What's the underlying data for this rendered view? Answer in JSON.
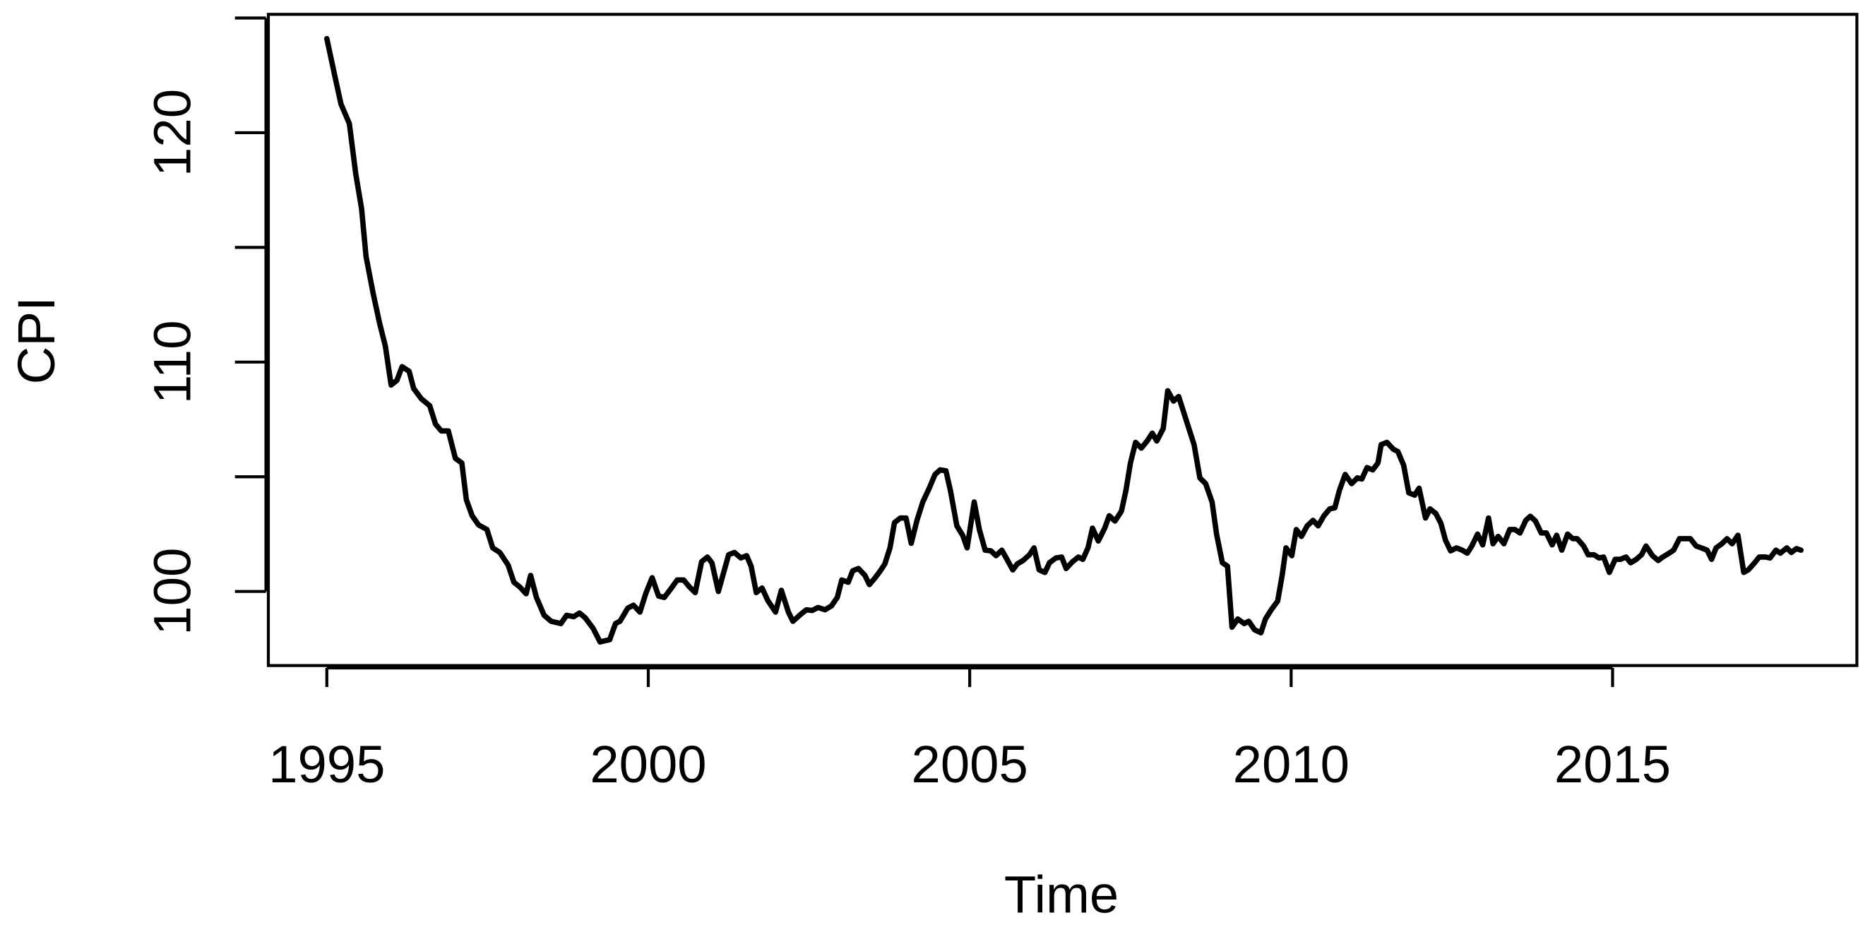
{
  "chart_data": {
    "type": "line",
    "x_label": "Time",
    "y_label": "CPI",
    "xlim": [
      1994.09,
      2018.8
    ],
    "ylim": [
      96.77,
      125.16
    ],
    "xticks": [
      1995,
      2000,
      2005,
      2010,
      2015
    ],
    "yticks": [
      100,
      110,
      120
    ],
    "y_minor_ticks": [
      105,
      115,
      125
    ],
    "color": "#000000",
    "x": [
      1995.0,
      1995.13,
      1995.22,
      1995.35,
      1995.45,
      1995.54,
      1995.61,
      1995.72,
      1995.82,
      1995.91,
      1996.0,
      1996.09,
      1996.17,
      1996.28,
      1996.35,
      1996.47,
      1996.6,
      1996.69,
      1996.78,
      1996.89,
      1997.0,
      1997.1,
      1997.17,
      1997.26,
      1997.36,
      1997.49,
      1997.58,
      1997.69,
      1997.82,
      1997.91,
      1998.0,
      1998.1,
      1998.17,
      1998.26,
      1998.38,
      1998.49,
      1998.64,
      1998.73,
      1998.84,
      1998.93,
      1999.02,
      1999.14,
      1999.25,
      1999.4,
      1999.49,
      1999.56,
      1999.68,
      1999.77,
      1999.87,
      1999.96,
      2000.06,
      2000.16,
      2000.25,
      2000.36,
      2000.45,
      2000.55,
      2000.64,
      2000.73,
      2000.83,
      2000.92,
      2000.99,
      2001.09,
      2001.18,
      2001.25,
      2001.34,
      2001.44,
      2001.53,
      2001.6,
      2001.68,
      2001.77,
      2001.86,
      2001.98,
      2002.07,
      2002.18,
      2002.25,
      2002.37,
      2002.46,
      2002.55,
      2002.64,
      2002.75,
      2002.85,
      2002.94,
      2003.01,
      2003.11,
      2003.18,
      2003.27,
      2003.37,
      2003.44,
      2003.53,
      2003.61,
      2003.68,
      2003.76,
      2003.83,
      2003.92,
      2004.01,
      2004.09,
      2004.18,
      2004.27,
      2004.37,
      2004.46,
      2004.54,
      2004.63,
      2004.7,
      2004.8,
      2004.89,
      2004.96,
      2005.07,
      2005.15,
      2005.24,
      2005.33,
      2005.41,
      2005.5,
      2005.58,
      2005.67,
      2005.74,
      2005.83,
      2005.93,
      2006.0,
      2006.08,
      2006.17,
      2006.24,
      2006.34,
      2006.43,
      2006.5,
      2006.6,
      2006.69,
      2006.76,
      2006.84,
      2006.91,
      2007.0,
      2007.1,
      2007.17,
      2007.26,
      2007.36,
      2007.43,
      2007.5,
      2007.58,
      2007.67,
      2007.76,
      2007.84,
      2007.91,
      2008.01,
      2008.08,
      2008.17,
      2008.25,
      2008.33,
      2008.41,
      2008.49,
      2008.58,
      2008.67,
      2008.77,
      2008.84,
      2008.93,
      2009.01,
      2009.08,
      2009.17,
      2009.27,
      2009.34,
      2009.43,
      2009.53,
      2009.6,
      2009.69,
      2009.79,
      2009.86,
      2009.92,
      2010.01,
      2010.08,
      2010.16,
      2010.25,
      2010.34,
      2010.42,
      2010.51,
      2010.6,
      2010.68,
      2010.75,
      2010.84,
      2010.94,
      2011.03,
      2011.1,
      2011.18,
      2011.27,
      2011.35,
      2011.4,
      2011.49,
      2011.59,
      2011.66,
      2011.75,
      2011.83,
      2011.92,
      2011.99,
      2012.09,
      2012.16,
      2012.25,
      2012.33,
      2012.4,
      2012.48,
      2012.57,
      2012.66,
      2012.74,
      2012.81,
      2012.9,
      2012.98,
      2013.07,
      2013.14,
      2013.22,
      2013.31,
      2013.4,
      2013.48,
      2013.56,
      2013.65,
      2013.72,
      2013.8,
      2013.89,
      2013.97,
      2014.06,
      2014.13,
      2014.21,
      2014.3,
      2014.38,
      2014.45,
      2014.55,
      2014.62,
      2014.71,
      2014.79,
      2014.86,
      2014.95,
      2015.04,
      2015.12,
      2015.21,
      2015.28,
      2015.37,
      2015.45,
      2015.52,
      2015.62,
      2015.71,
      2015.78,
      2015.88,
      2015.95,
      2016.04,
      2016.13,
      2016.21,
      2016.3,
      2016.38,
      2016.47,
      2016.54,
      2016.61,
      2016.7,
      2016.78,
      2016.86,
      2016.95,
      2017.04,
      2017.11,
      2017.21,
      2017.28,
      2017.38,
      2017.45,
      2017.54,
      2017.61,
      2017.71,
      2017.78,
      2017.86,
      2017.93
    ],
    "values": [
      124.1,
      122.4,
      121.25,
      120.4,
      118.2,
      116.7,
      114.6,
      113.0,
      111.7,
      110.7,
      109.0,
      109.2,
      109.8,
      109.6,
      108.85,
      108.4,
      108.1,
      107.3,
      107.0,
      107.0,
      105.8,
      105.6,
      104.0,
      103.3,
      102.9,
      102.7,
      101.9,
      101.7,
      101.15,
      100.4,
      100.2,
      99.9,
      100.7,
      99.74,
      98.96,
      98.7,
      98.6,
      98.96,
      98.9,
      99.06,
      98.85,
      98.4,
      97.8,
      97.9,
      98.6,
      98.7,
      99.27,
      99.4,
      99.1,
      99.9,
      100.6,
      99.8,
      99.74,
      100.15,
      100.5,
      100.5,
      100.2,
      99.95,
      101.3,
      101.5,
      101.25,
      100.0,
      100.9,
      101.6,
      101.7,
      101.46,
      101.56,
      101.1,
      99.95,
      100.15,
      99.6,
      99.1,
      100.05,
      99.1,
      98.7,
      99.0,
      99.2,
      99.17,
      99.3,
      99.2,
      99.37,
      99.74,
      100.5,
      100.4,
      100.9,
      101.0,
      100.7,
      100.3,
      100.6,
      100.9,
      101.2,
      101.9,
      103.0,
      103.2,
      103.2,
      102.1,
      103.1,
      103.9,
      104.5,
      105.1,
      105.3,
      105.26,
      104.4,
      102.86,
      102.45,
      101.9,
      103.9,
      102.7,
      101.8,
      101.77,
      101.56,
      101.8,
      101.4,
      100.94,
      101.2,
      101.35,
      101.6,
      101.9,
      100.94,
      100.83,
      101.25,
      101.46,
      101.5,
      101.0,
      101.3,
      101.5,
      101.4,
      101.9,
      102.76,
      102.2,
      102.76,
      103.3,
      103.07,
      103.5,
      104.4,
      105.6,
      106.5,
      106.25,
      106.56,
      106.9,
      106.56,
      107.1,
      108.75,
      108.3,
      108.5,
      107.8,
      107.1,
      106.4,
      104.95,
      104.7,
      103.9,
      102.5,
      101.25,
      101.1,
      98.44,
      98.8,
      98.6,
      98.7,
      98.33,
      98.2,
      98.8,
      99.2,
      99.58,
      100.7,
      101.9,
      101.56,
      102.7,
      102.4,
      102.86,
      103.1,
      102.86,
      103.3,
      103.6,
      103.65,
      104.4,
      105.1,
      104.7,
      104.95,
      104.9,
      105.4,
      105.3,
      105.6,
      106.4,
      106.5,
      106.2,
      106.1,
      105.5,
      104.3,
      104.2,
      104.5,
      103.2,
      103.6,
      103.4,
      102.97,
      102.24,
      101.77,
      101.9,
      101.8,
      101.67,
      101.98,
      102.5,
      102.03,
      103.2,
      102.08,
      102.4,
      102.08,
      102.7,
      102.7,
      102.55,
      103.1,
      103.28,
      103.07,
      102.55,
      102.55,
      102.03,
      102.45,
      101.8,
      102.5,
      102.3,
      102.3,
      101.98,
      101.6,
      101.6,
      101.46,
      101.5,
      100.83,
      101.4,
      101.4,
      101.5,
      101.25,
      101.4,
      101.6,
      101.98,
      101.56,
      101.35,
      101.5,
      101.67,
      101.8,
      102.3,
      102.3,
      102.3,
      101.98,
      101.9,
      101.8,
      101.4,
      101.9,
      102.08,
      102.3,
      102.08,
      102.45,
      100.83,
      100.94,
      101.25,
      101.5,
      101.5,
      101.46,
      101.8,
      101.67,
      101.9,
      101.7,
      101.87,
      101.8
    ]
  }
}
